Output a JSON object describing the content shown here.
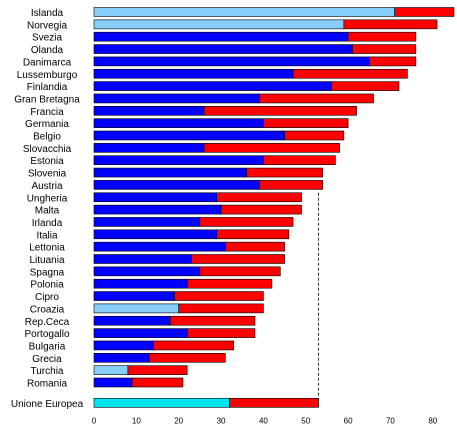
{
  "chart_data": {
    "type": "bar",
    "orientation": "horizontal",
    "stacked": true,
    "title": "",
    "xlabel": "",
    "ylabel": "",
    "xlim": [
      0,
      85
    ],
    "x_ticks": [
      0,
      10,
      20,
      30,
      40,
      50,
      60,
      70,
      80
    ],
    "grid": false,
    "legend": "none",
    "reference_line": {
      "x": 53,
      "style": "dashed"
    },
    "categories": [
      "Islanda",
      "Norvegia",
      "Svezia",
      "Olanda",
      "Danimarca",
      "Lussemburgo",
      "Finlandia",
      "Gran Bretagna",
      "Francia",
      "Germania",
      "Belgio",
      "Slovacchia",
      "Estonia",
      "Slovenia",
      "Austria",
      "Ungheria",
      "Malta",
      "Irlanda",
      "Italia",
      "Lettonia",
      "Lituania",
      "Spagna",
      "Polonia",
      "Cipro",
      "Croazia",
      "Rep.Ceca",
      "Portogallo",
      "Bulgaria",
      "Grecia",
      "Turchia",
      "Romania",
      "Unione Europea"
    ],
    "group_gap_before": "Unione Europea",
    "series": [
      {
        "values": [
          71,
          59,
          60,
          61,
          65,
          47,
          56,
          39,
          26,
          40,
          45,
          26,
          40,
          36,
          39,
          29,
          30,
          25,
          29,
          31,
          23,
          25,
          22,
          19,
          20,
          18,
          22,
          14,
          13,
          8,
          9,
          32
        ],
        "bar_colors": [
          "#87cefa",
          "#87cefa",
          "#0000ff",
          "#0000ff",
          "#0000ff",
          "#0000ff",
          "#0000ff",
          "#0000ff",
          "#0000ff",
          "#0000ff",
          "#0000ff",
          "#0000ff",
          "#0000ff",
          "#0000ff",
          "#0000ff",
          "#0000ff",
          "#0000ff",
          "#0000ff",
          "#0000ff",
          "#0000ff",
          "#0000ff",
          "#0000ff",
          "#0000ff",
          "#0000ff",
          "#87cefa",
          "#0000ff",
          "#0000ff",
          "#0000ff",
          "#0000ff",
          "#87cefa",
          "#0000ff",
          "#00e5ee"
        ]
      },
      {
        "values": [
          14,
          22,
          16,
          15,
          11,
          27,
          16,
          27,
          36,
          20,
          14,
          32,
          17,
          18,
          15,
          20,
          19,
          22,
          17,
          14,
          22,
          19,
          20,
          21,
          20,
          20,
          16,
          19,
          18,
          14,
          12,
          21
        ],
        "color": "#ff0000"
      }
    ]
  }
}
